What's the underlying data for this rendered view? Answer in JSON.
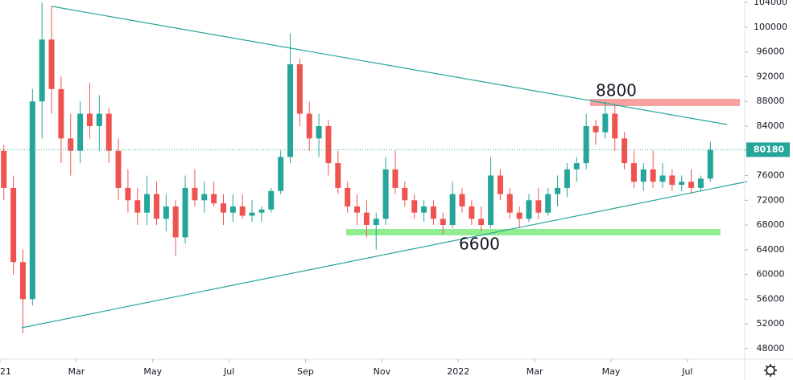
{
  "chart_data": {
    "type": "candlestick",
    "up_color": "#26a69a",
    "down_color": "#ef5350",
    "xlim": [
      0,
      19.5
    ],
    "xticks": [
      {
        "value": 0,
        "label": "2021"
      },
      {
        "value": 2,
        "label": "Mar"
      },
      {
        "value": 4,
        "label": "May"
      },
      {
        "value": 6,
        "label": "Jul"
      },
      {
        "value": 8,
        "label": "Sep"
      },
      {
        "value": 10,
        "label": "Nov"
      },
      {
        "value": 12,
        "label": "2022"
      },
      {
        "value": 14,
        "label": "Mar"
      },
      {
        "value": 16,
        "label": "May"
      },
      {
        "value": 18,
        "label": "Jul"
      }
    ],
    "ylim": [
      46300,
      104400
    ],
    "yticks": [
      48000,
      52000,
      56000,
      60000,
      64000,
      68000,
      72000,
      76000,
      80000,
      84000,
      88000,
      92000,
      96000,
      100000,
      104000
    ],
    "last_price": 80180,
    "annotations": [
      "8800",
      "6600"
    ],
    "x": [
      0.1,
      0.35,
      0.6,
      0.85,
      1.1,
      1.35,
      1.6,
      1.85,
      2.1,
      2.35,
      2.6,
      2.85,
      3.1,
      3.35,
      3.6,
      3.85,
      4.1,
      4.35,
      4.6,
      4.85,
      5.1,
      5.35,
      5.6,
      5.85,
      6.1,
      6.35,
      6.6,
      6.85,
      7.1,
      7.35,
      7.6,
      7.85,
      8.1,
      8.35,
      8.6,
      8.85,
      9.1,
      9.35,
      9.6,
      9.85,
      10.1,
      10.35,
      10.6,
      10.85,
      11.1,
      11.35,
      11.6,
      11.85,
      12.1,
      12.35,
      12.6,
      12.85,
      13.1,
      13.35,
      13.6,
      13.85,
      14.1,
      14.35,
      14.6,
      14.85,
      15.1,
      15.35,
      15.6,
      15.85,
      16.1,
      16.35,
      16.6,
      16.85,
      17.1,
      17.35,
      17.6,
      17.85,
      18.1,
      18.35,
      18.6
    ],
    "ohlc": [
      [
        80000,
        81000,
        72000,
        74000
      ],
      [
        74000,
        76000,
        60000,
        62000
      ],
      [
        62000,
        64000,
        50500,
        56000
      ],
      [
        56000,
        90000,
        55000,
        88000
      ],
      [
        88000,
        104000,
        82000,
        98000
      ],
      [
        98000,
        103500,
        86000,
        90000
      ],
      [
        90000,
        92000,
        78000,
        82000
      ],
      [
        82000,
        86000,
        76000,
        80000
      ],
      [
        80000,
        88000,
        78000,
        86000
      ],
      [
        86000,
        91000,
        82000,
        84000
      ],
      [
        84000,
        89000,
        80000,
        86000
      ],
      [
        86000,
        87000,
        78000,
        80000
      ],
      [
        80000,
        82000,
        72000,
        74000
      ],
      [
        74000,
        77000,
        70000,
        72000
      ],
      [
        72000,
        74000,
        68000,
        70000
      ],
      [
        70000,
        76000,
        68000,
        73000
      ],
      [
        73000,
        75000,
        68000,
        69000
      ],
      [
        69000,
        73000,
        67000,
        71000
      ],
      [
        71000,
        72000,
        63000,
        66000
      ],
      [
        66000,
        76000,
        65000,
        74000
      ],
      [
        74000,
        77000,
        71000,
        72000
      ],
      [
        72000,
        75000,
        70000,
        73000
      ],
      [
        73000,
        75000,
        71000,
        71500
      ],
      [
        71500,
        73000,
        68000,
        70000
      ],
      [
        70000,
        73000,
        68500,
        71000
      ],
      [
        71000,
        73000,
        69000,
        69500
      ],
      [
        69500,
        72000,
        68500,
        70000
      ],
      [
        70000,
        71000,
        68500,
        70500
      ],
      [
        70500,
        74000,
        70000,
        73500
      ],
      [
        73500,
        80000,
        73000,
        79000
      ],
      [
        79000,
        99000,
        78000,
        94000
      ],
      [
        94000,
        95000,
        84000,
        86000
      ],
      [
        86000,
        88000,
        80000,
        82000
      ],
      [
        82000,
        86000,
        79000,
        84000
      ],
      [
        84000,
        85000,
        76000,
        78000
      ],
      [
        78000,
        80000,
        73000,
        74000
      ],
      [
        74000,
        75000,
        70000,
        71000
      ],
      [
        71000,
        73000,
        68000,
        70000
      ],
      [
        70000,
        72000,
        66000,
        68000
      ],
      [
        68000,
        70000,
        64000,
        69000
      ],
      [
        69000,
        79000,
        68000,
        77000
      ],
      [
        77000,
        80000,
        73000,
        74000
      ],
      [
        74000,
        75000,
        71000,
        72000
      ],
      [
        72000,
        73000,
        69000,
        70000
      ],
      [
        70000,
        72000,
        68500,
        71000
      ],
      [
        71000,
        72000,
        68000,
        69000
      ],
      [
        69000,
        70000,
        66500,
        68000
      ],
      [
        68000,
        75000,
        67500,
        73000
      ],
      [
        73000,
        74000,
        70000,
        71000
      ],
      [
        71000,
        72000,
        68000,
        69000
      ],
      [
        69000,
        71000,
        67000,
        68000
      ],
      [
        68000,
        79000,
        67500,
        76000
      ],
      [
        76000,
        77000,
        72000,
        73000
      ],
      [
        73000,
        74000,
        69000,
        70000
      ],
      [
        70000,
        71000,
        67500,
        69000
      ],
      [
        69000,
        73000,
        68500,
        72000
      ],
      [
        72000,
        74000,
        69000,
        70000
      ],
      [
        70000,
        74000,
        69500,
        73000
      ],
      [
        73000,
        76000,
        71000,
        74000
      ],
      [
        74000,
        78000,
        72500,
        77000
      ],
      [
        77000,
        79000,
        75000,
        78000
      ],
      [
        78000,
        86000,
        77000,
        84000
      ],
      [
        84000,
        85000,
        81000,
        83000
      ],
      [
        83000,
        88000,
        82000,
        86000
      ],
      [
        86000,
        87500,
        80000,
        82000
      ],
      [
        82000,
        83000,
        77000,
        78000
      ],
      [
        78000,
        80000,
        74000,
        75000
      ],
      [
        75000,
        78000,
        73500,
        77000
      ],
      [
        77000,
        80000,
        74000,
        75000
      ],
      [
        75000,
        78000,
        74000,
        76000
      ],
      [
        76000,
        77000,
        73500,
        74500
      ],
      [
        74500,
        76000,
        73500,
        75000
      ],
      [
        75000,
        77000,
        73000,
        74000
      ],
      [
        74000,
        76000,
        73500,
        75500
      ],
      [
        75500,
        81500,
        75000,
        80180
      ]
    ]
  }
}
